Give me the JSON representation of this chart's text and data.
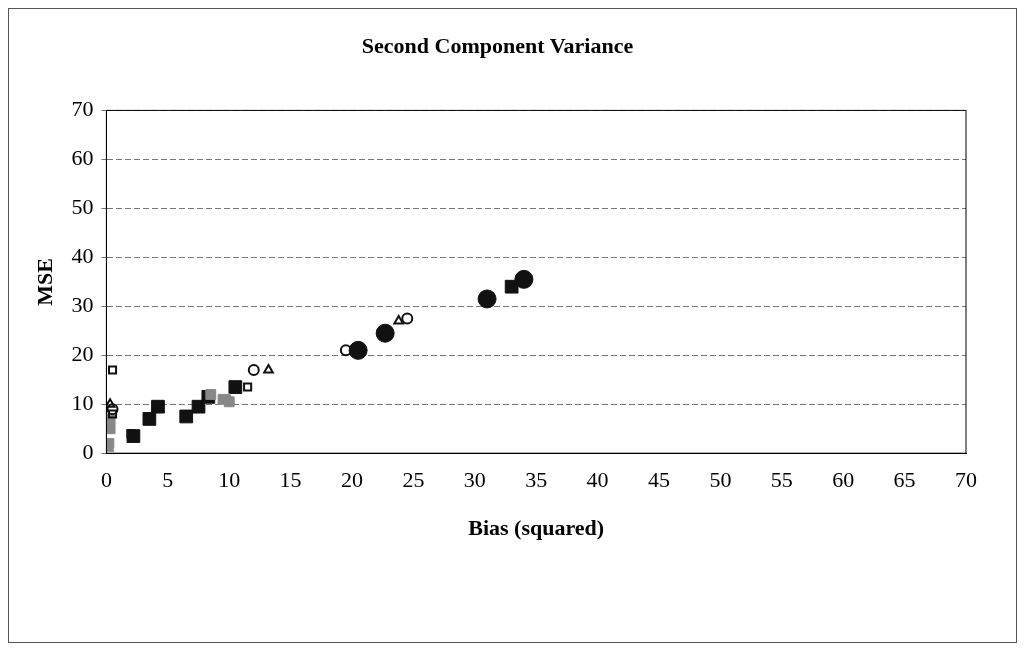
{
  "chart_data": {
    "type": "scatter",
    "title": "Second Component Variance",
    "xlabel": "Bias (squared)",
    "ylabel": "MSE",
    "xlim": [
      0,
      70
    ],
    "xticks": [
      0,
      5,
      10,
      15,
      20,
      25,
      30,
      35,
      40,
      45,
      50,
      55,
      60,
      65,
      70
    ],
    "ylim": [
      0,
      70
    ],
    "yticks": [
      0,
      10,
      20,
      30,
      40,
      50,
      60,
      70
    ],
    "grid": "y",
    "legend": false,
    "series": [
      {
        "color": "#111111",
        "marker": "square",
        "x": [
          2.2,
          3.5,
          4.2,
          6.5,
          7.5,
          8.3,
          10.5,
          33
        ],
        "values": [
          3.5,
          7,
          9.5,
          7.5,
          9.5,
          11.5,
          13.5,
          34
        ]
      },
      {
        "color": "#111111",
        "marker": "circle",
        "x": [
          20.5,
          31,
          34,
          22.7
        ],
        "values": [
          21,
          31.5,
          35.5,
          24.5
        ]
      },
      {
        "color": "#888888",
        "marker": "square",
        "x": [
          0.2,
          0.3,
          0.3,
          9.5,
          10,
          8.5
        ],
        "values": [
          2,
          5,
          7,
          11,
          10.5,
          12
        ]
      },
      {
        "color": "#888888",
        "marker": "triangle",
        "x": [
          0.2,
          10
        ],
        "values": [
          1,
          11
        ]
      },
      {
        "color": "#111111",
        "marker": "circle",
        "x": [
          12,
          24.5,
          19.5,
          0.5
        ],
        "values": [
          17,
          27.5,
          21,
          9
        ]
      },
      {
        "color": "#111111",
        "marker": "triangle",
        "x": [
          13.2,
          23.8,
          0.3
        ],
        "values": [
          17,
          27,
          10
        ]
      },
      {
        "color": "#111111",
        "marker": "square",
        "x": [
          0.5,
          0.5,
          2,
          11.5
        ],
        "values": [
          17,
          8,
          4,
          13.5
        ]
      }
    ]
  }
}
